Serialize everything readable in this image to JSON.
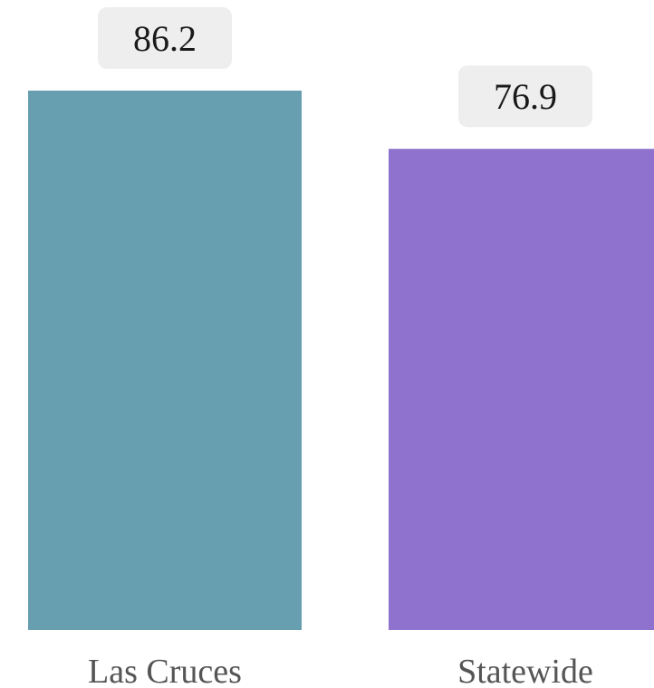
{
  "chart_data": {
    "type": "bar",
    "categories": [
      "Las Cruces",
      "Statewide"
    ],
    "values": [
      86.2,
      76.9
    ],
    "data_labels": [
      "86.2",
      "76.9"
    ],
    "colors": [
      "#679fb0",
      "#8f72cd"
    ],
    "title": "",
    "xlabel": "",
    "ylabel": "",
    "ylim": [
      0,
      86.2
    ],
    "grid": false,
    "legend": "none"
  }
}
